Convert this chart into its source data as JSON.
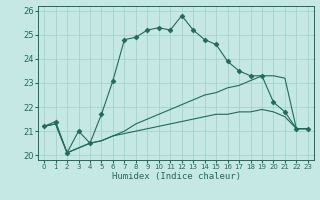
{
  "title": "",
  "xlabel": "Humidex (Indice chaleur)",
  "ylabel": "",
  "xlim": [
    -0.5,
    23.5
  ],
  "ylim": [
    19.8,
    26.2
  ],
  "xticks": [
    0,
    1,
    2,
    3,
    4,
    5,
    6,
    7,
    8,
    9,
    10,
    11,
    12,
    13,
    14,
    15,
    16,
    17,
    18,
    19,
    20,
    21,
    22,
    23
  ],
  "yticks": [
    20,
    21,
    22,
    23,
    24,
    25,
    26
  ],
  "bg_color": "#c5e8e5",
  "line_color": "#1e6b5b",
  "grid_color": "#9ecece",
  "series": [
    {
      "x": [
        0,
        1,
        2,
        3,
        4,
        5,
        6,
        7,
        8,
        9,
        10,
        11,
        12,
        13,
        14,
        15,
        16,
        17,
        18,
        19,
        20,
        21,
        22,
        23
      ],
      "y": [
        21.2,
        21.4,
        20.1,
        21.0,
        20.5,
        21.7,
        23.1,
        24.8,
        24.9,
        25.2,
        25.3,
        25.2,
        25.8,
        25.2,
        24.8,
        24.6,
        23.9,
        23.5,
        23.3,
        23.3,
        22.2,
        21.8,
        21.1,
        21.1
      ],
      "marker": "D",
      "markersize": 2.5
    },
    {
      "x": [
        0,
        1,
        2,
        3,
        4,
        5,
        6,
        7,
        8,
        9,
        10,
        11,
        12,
        13,
        14,
        15,
        16,
        17,
        18,
        19,
        20,
        21,
        22,
        23
      ],
      "y": [
        21.2,
        21.3,
        20.1,
        20.3,
        20.5,
        20.6,
        20.8,
        21.0,
        21.3,
        21.5,
        21.7,
        21.9,
        22.1,
        22.3,
        22.5,
        22.6,
        22.8,
        22.9,
        23.1,
        23.3,
        23.3,
        23.2,
        21.1,
        21.1
      ],
      "marker": null,
      "markersize": 0
    },
    {
      "x": [
        0,
        1,
        2,
        3,
        4,
        5,
        6,
        7,
        8,
        9,
        10,
        11,
        12,
        13,
        14,
        15,
        16,
        17,
        18,
        19,
        20,
        21,
        22,
        23
      ],
      "y": [
        21.2,
        21.3,
        20.1,
        20.3,
        20.5,
        20.6,
        20.8,
        20.9,
        21.0,
        21.1,
        21.2,
        21.3,
        21.4,
        21.5,
        21.6,
        21.7,
        21.7,
        21.8,
        21.8,
        21.9,
        21.8,
        21.6,
        21.1,
        21.1
      ],
      "marker": null,
      "markersize": 0
    }
  ]
}
